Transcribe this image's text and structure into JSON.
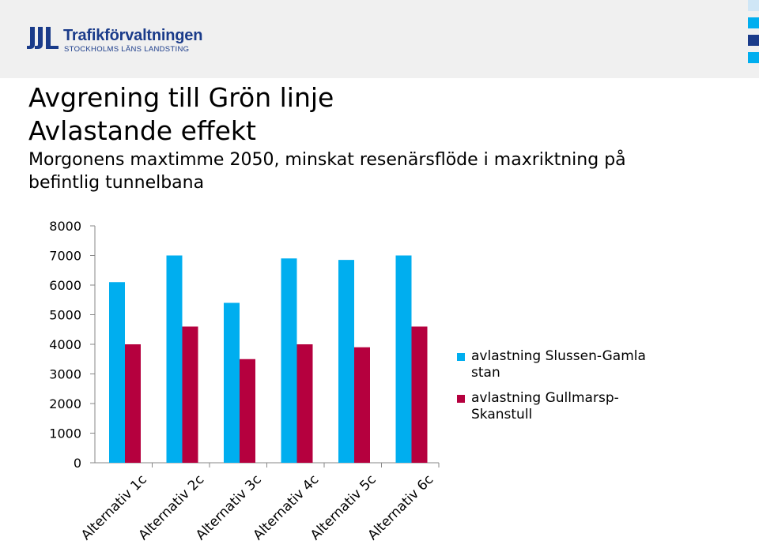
{
  "header": {
    "logo_name": "Trafikförvaltningen",
    "logo_sub": "STOCKHOLMS LÄNS LANDSTING",
    "logo_icon": "tl-logo-icon"
  },
  "slide": {
    "title_line1": "Avgrening till Grön linje",
    "title_line2": "Avlastande effekt",
    "subtitle_line1": "Morgonens maxtimme 2050, minskat resenärsflöde i maxriktning på",
    "subtitle_line2": "befintlig tunnelbana"
  },
  "colors": {
    "series1": "#00aeef",
    "series2": "#b5003e",
    "brand": "#1a3b8a",
    "deco_light": "#cfe6f6",
    "deco_dark": "#1a3b8a",
    "deco_mid": "#00aeef"
  },
  "chart_data": {
    "type": "bar",
    "categories": [
      "Alternativ 1c",
      "Alternativ 2c",
      "Alternativ 3c",
      "Alternativ 4c",
      "Alternativ 5c",
      "Alternativ 6c"
    ],
    "series": [
      {
        "name": "avlastning Slussen-Gamla stan",
        "values": [
          6100,
          7000,
          5400,
          6900,
          6850,
          7000
        ]
      },
      {
        "name": "avlastning Gullmarsp-Skanstull",
        "values": [
          4000,
          4600,
          3500,
          4000,
          3900,
          4600
        ]
      }
    ],
    "yticks": [
      0,
      1000,
      2000,
      3000,
      4000,
      5000,
      6000,
      7000,
      8000
    ],
    "ylim": [
      0,
      8000
    ],
    "grid": false,
    "legend_position": "right"
  }
}
